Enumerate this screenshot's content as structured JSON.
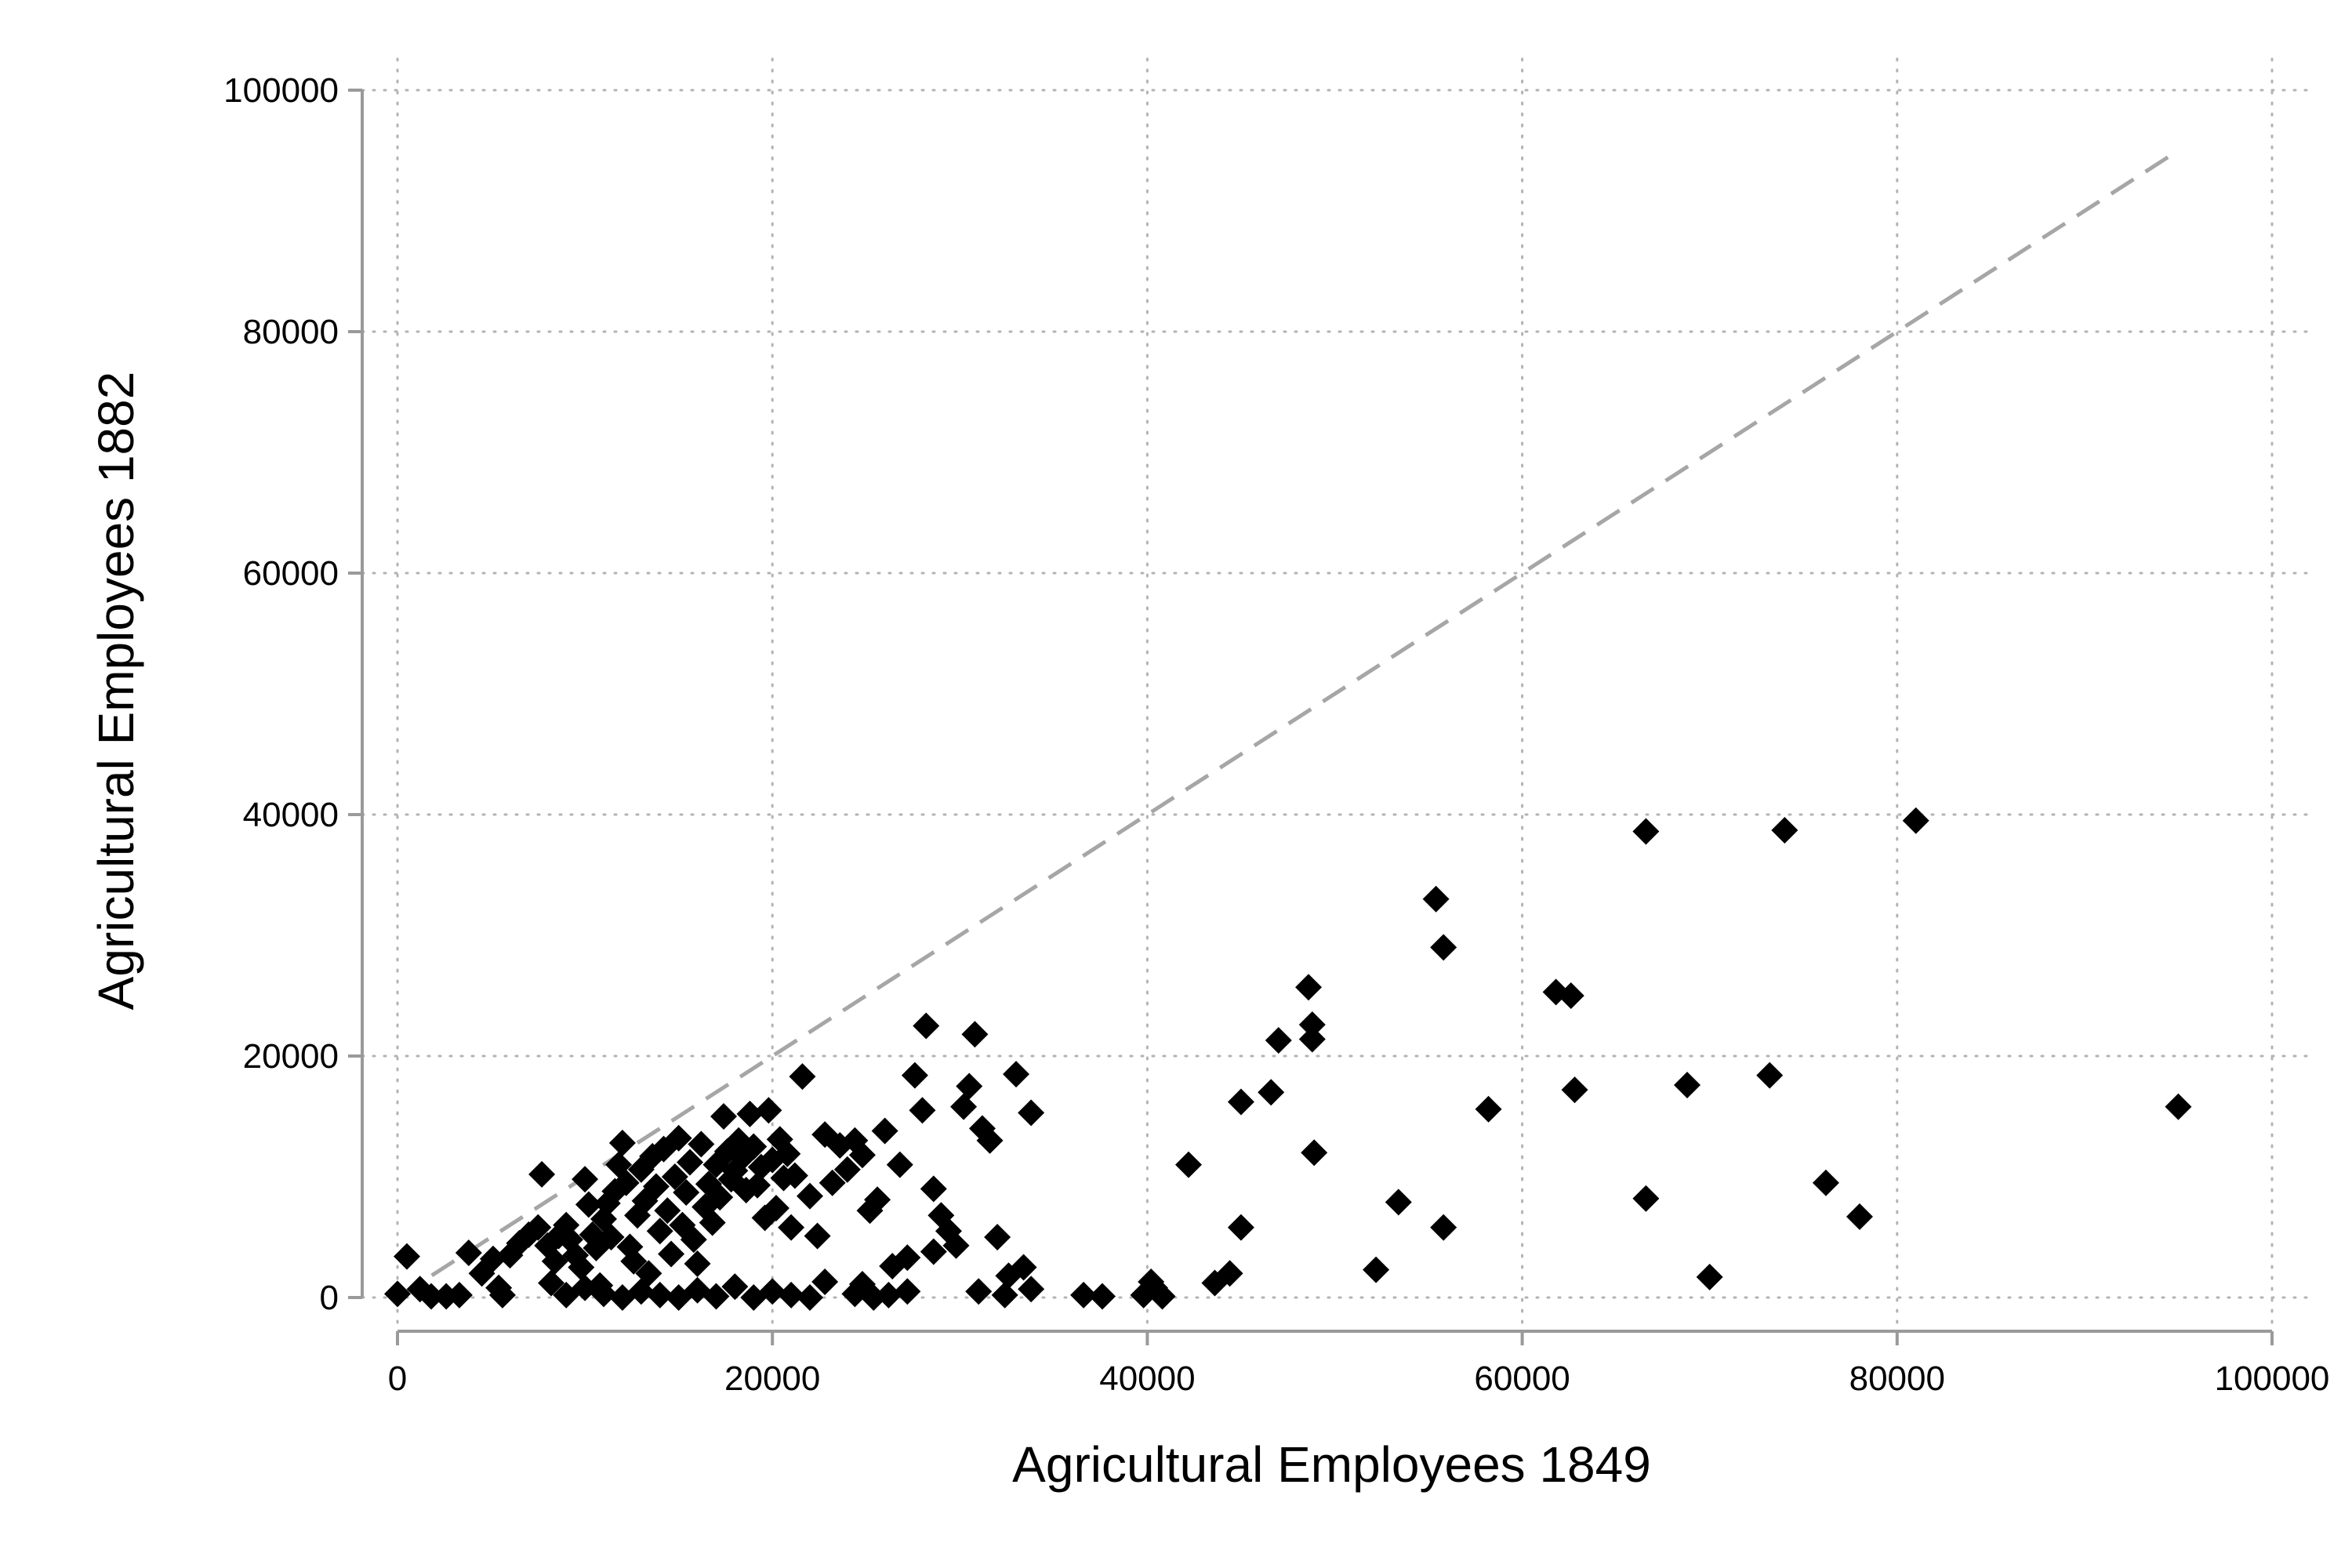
{
  "chart_data": {
    "type": "scatter",
    "title": "",
    "xlabel": "Agricultural Employees 1849",
    "ylabel": "Agricultural Employees 1882",
    "xlim": [
      0,
      100000
    ],
    "ylim": [
      0,
      100000
    ],
    "x_ticks": [
      "0",
      "20000",
      "40000",
      "60000",
      "80000",
      "100000"
    ],
    "y_ticks": [
      "0",
      "20000",
      "40000",
      "60000",
      "80000",
      "100000"
    ],
    "grid": true,
    "marker": "diamond",
    "marker_color": "#000000",
    "reference_line": {
      "style": "dashed",
      "color": "#a6a6a6",
      "from": [
        0,
        0
      ],
      "to": [
        95000,
        95000
      ]
    },
    "series": [
      {
        "points": [
          [
            500,
            3400
          ],
          [
            0,
            300
          ],
          [
            1200,
            700
          ],
          [
            1800,
            100
          ],
          [
            2600,
            100
          ],
          [
            3300,
            200
          ],
          [
            3800,
            3700
          ],
          [
            4500,
            2000
          ],
          [
            5100,
            3200
          ],
          [
            5400,
            800
          ],
          [
            5600,
            200
          ],
          [
            6000,
            3500
          ],
          [
            6500,
            4500
          ],
          [
            7000,
            5200
          ],
          [
            7500,
            5800
          ],
          [
            7700,
            10200
          ],
          [
            8000,
            4300
          ],
          [
            8200,
            1200
          ],
          [
            8400,
            3000
          ],
          [
            8600,
            5100
          ],
          [
            9000,
            6000
          ],
          [
            9200,
            4800
          ],
          [
            9500,
            3500
          ],
          [
            9800,
            2500
          ],
          [
            10000,
            9800
          ],
          [
            10200,
            7700
          ],
          [
            10400,
            5200
          ],
          [
            10600,
            4100
          ],
          [
            10800,
            1000
          ],
          [
            11000,
            6500
          ],
          [
            11200,
            7800
          ],
          [
            11400,
            5000
          ],
          [
            11600,
            8800
          ],
          [
            11800,
            11000
          ],
          [
            12000,
            12800
          ],
          [
            12200,
            9500
          ],
          [
            12400,
            4200
          ],
          [
            12600,
            3000
          ],
          [
            12800,
            6800
          ],
          [
            13000,
            10600
          ],
          [
            13200,
            8000
          ],
          [
            13400,
            2000
          ],
          [
            13600,
            11700
          ],
          [
            13800,
            9200
          ],
          [
            14000,
            5500
          ],
          [
            14200,
            12300
          ],
          [
            14400,
            7200
          ],
          [
            14600,
            3600
          ],
          [
            14800,
            10000
          ],
          [
            15000,
            13200
          ],
          [
            15200,
            6000
          ],
          [
            15400,
            8700
          ],
          [
            15600,
            11200
          ],
          [
            15800,
            4800
          ],
          [
            16000,
            2800
          ],
          [
            16200,
            12700
          ],
          [
            16400,
            7500
          ],
          [
            16600,
            9400
          ],
          [
            16800,
            6200
          ],
          [
            17000,
            11000
          ],
          [
            17200,
            8300
          ],
          [
            17400,
            15000
          ],
          [
            17600,
            12100
          ],
          [
            17800,
            9800
          ],
          [
            18000,
            10500
          ],
          [
            18200,
            13000
          ],
          [
            18400,
            11600
          ],
          [
            18600,
            8900
          ],
          [
            18800,
            15200
          ],
          [
            19000,
            12500
          ],
          [
            19200,
            9300
          ],
          [
            19400,
            10800
          ],
          [
            19600,
            6600
          ],
          [
            19800,
            15500
          ],
          [
            20000,
            11400
          ],
          [
            20200,
            7400
          ],
          [
            20400,
            13100
          ],
          [
            20600,
            9900
          ],
          [
            20800,
            11900
          ],
          [
            21000,
            5800
          ],
          [
            21200,
            10100
          ],
          [
            21600,
            18300
          ],
          [
            22000,
            8400
          ],
          [
            22400,
            5100
          ],
          [
            22800,
            13500
          ],
          [
            23200,
            9500
          ],
          [
            23600,
            12600
          ],
          [
            24000,
            10600
          ],
          [
            24400,
            13000
          ],
          [
            24800,
            11800
          ],
          [
            25200,
            7200
          ],
          [
            25600,
            8100
          ],
          [
            26000,
            13800
          ],
          [
            26400,
            2600
          ],
          [
            26800,
            11000
          ],
          [
            27200,
            3300
          ],
          [
            27600,
            18400
          ],
          [
            28000,
            15500
          ],
          [
            28200,
            22500
          ],
          [
            28600,
            9000
          ],
          [
            29000,
            6800
          ],
          [
            29400,
            5500
          ],
          [
            29800,
            4300
          ],
          [
            30200,
            15800
          ],
          [
            30500,
            17500
          ],
          [
            30800,
            21800
          ],
          [
            31200,
            14000
          ],
          [
            31600,
            13000
          ],
          [
            32000,
            5000
          ],
          [
            32600,
            1800
          ],
          [
            33000,
            18500
          ],
          [
            33400,
            2500
          ],
          [
            33800,
            15300
          ],
          [
            9000,
            200
          ],
          [
            10000,
            800
          ],
          [
            11000,
            300
          ],
          [
            12000,
            0
          ],
          [
            13000,
            500
          ],
          [
            14000,
            200
          ],
          [
            15000,
            0
          ],
          [
            16000,
            600
          ],
          [
            17000,
            100
          ],
          [
            18000,
            900
          ],
          [
            19000,
            0
          ],
          [
            20000,
            500
          ],
          [
            21000,
            200
          ],
          [
            22000,
            0
          ],
          [
            22800,
            1300
          ],
          [
            24400,
            300
          ],
          [
            24800,
            1100
          ],
          [
            25400,
            0
          ],
          [
            26200,
            200
          ],
          [
            27200,
            500
          ],
          [
            28600,
            3800
          ],
          [
            31000,
            500
          ],
          [
            32400,
            200
          ],
          [
            33800,
            700
          ],
          [
            36600,
            200
          ],
          [
            37600,
            100
          ],
          [
            39800,
            200
          ],
          [
            40200,
            1300
          ],
          [
            40400,
            800
          ],
          [
            40800,
            100
          ],
          [
            42200,
            11000
          ],
          [
            43600,
            1200
          ],
          [
            44400,
            2000
          ],
          [
            45000,
            5800
          ],
          [
            45000,
            16200
          ],
          [
            46600,
            17000
          ],
          [
            47000,
            21300
          ],
          [
            48600,
            25700
          ],
          [
            48800,
            22600
          ],
          [
            48800,
            21400
          ],
          [
            48900,
            12000
          ],
          [
            52200,
            2300
          ],
          [
            53400,
            7900
          ],
          [
            55400,
            33000
          ],
          [
            55800,
            29000
          ],
          [
            55800,
            5800
          ],
          [
            58200,
            15600
          ],
          [
            61800,
            25300
          ],
          [
            62600,
            25000
          ],
          [
            62800,
            17200
          ],
          [
            66600,
            38600
          ],
          [
            66600,
            8200
          ],
          [
            68800,
            17600
          ],
          [
            70000,
            1700
          ],
          [
            73200,
            18400
          ],
          [
            74000,
            38700
          ],
          [
            76200,
            9500
          ],
          [
            78000,
            6700
          ],
          [
            81000,
            39500
          ],
          [
            95000,
            15800
          ]
        ]
      }
    ]
  }
}
